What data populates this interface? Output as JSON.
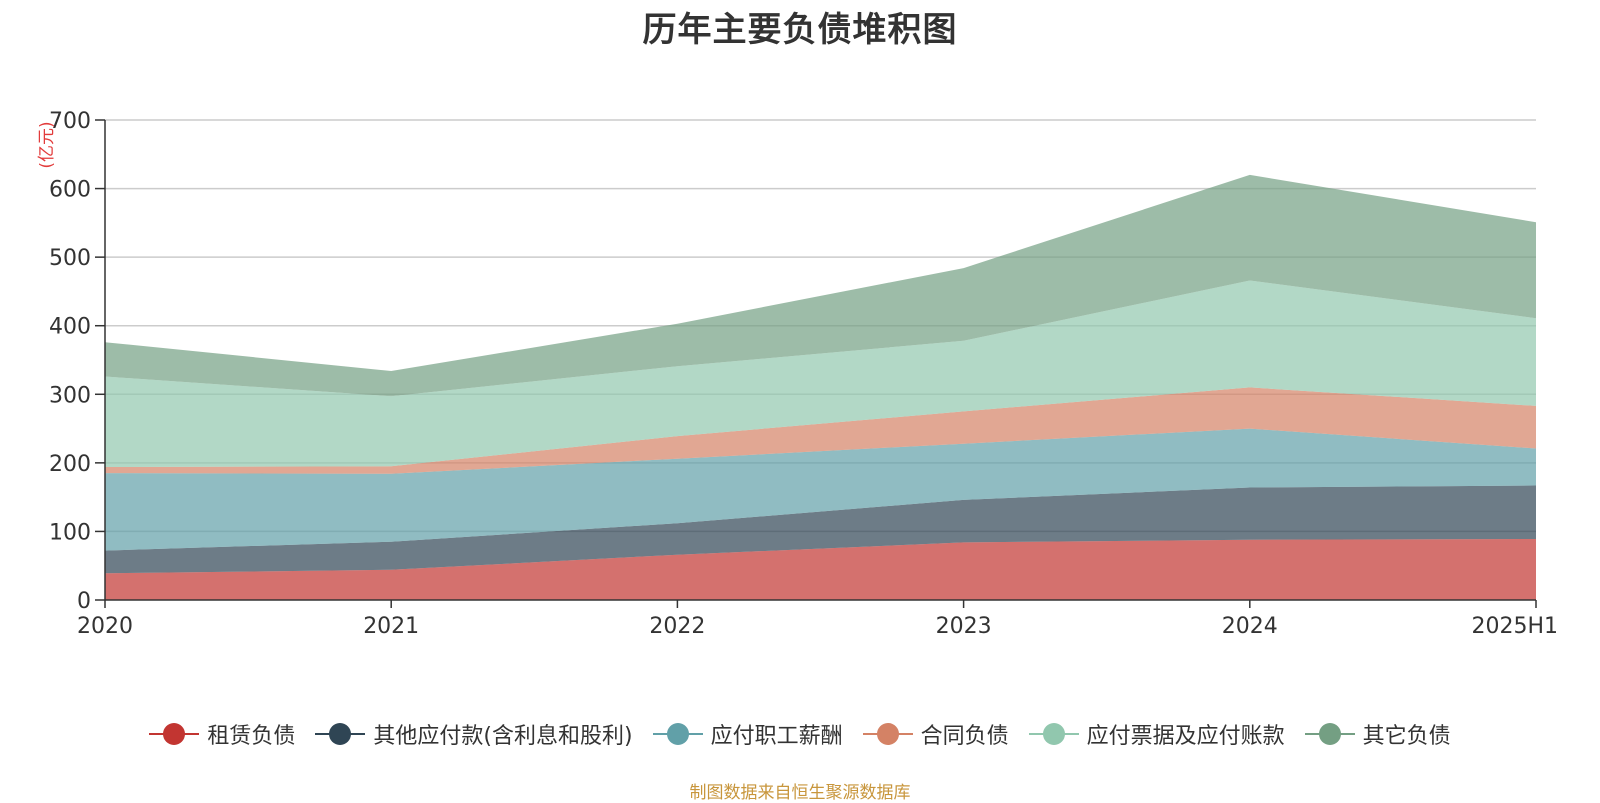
{
  "chart_data": {
    "type": "area",
    "stacked": true,
    "title": "历年主要负债堆积图",
    "ylabel": "(亿元)",
    "xlabel": "",
    "categories": [
      "2020",
      "2021",
      "2022",
      "2023",
      "2024",
      "2025H1"
    ],
    "ylim": [
      0,
      700
    ],
    "yticks": [
      0,
      100,
      200,
      300,
      400,
      500,
      600,
      700
    ],
    "grid": true,
    "legend_position": "bottom",
    "series": [
      {
        "name": "租赁负债",
        "color": "#c23531",
        "values": [
          39,
          44,
          66,
          84,
          88,
          89
        ]
      },
      {
        "name": "其他应付款(含利息和股利)",
        "color": "#2f4554",
        "values": [
          33,
          41,
          46,
          62,
          76,
          78
        ]
      },
      {
        "name": "应付职工薪酬",
        "color": "#61a0a8",
        "values": [
          113,
          99,
          94,
          82,
          86,
          54
        ]
      },
      {
        "name": "合同负债",
        "color": "#d48265",
        "values": [
          9,
          11,
          33,
          47,
          60,
          62
        ]
      },
      {
        "name": "应付票据及应付账款",
        "color": "#91c7ae",
        "values": [
          132,
          102,
          102,
          103,
          156,
          128
        ]
      },
      {
        "name": "其它负债",
        "color": "#749f83",
        "values": [
          50,
          37,
          62,
          106,
          154,
          140
        ]
      }
    ]
  },
  "footer": {
    "source": "制图数据来自恒生聚源数据库"
  }
}
